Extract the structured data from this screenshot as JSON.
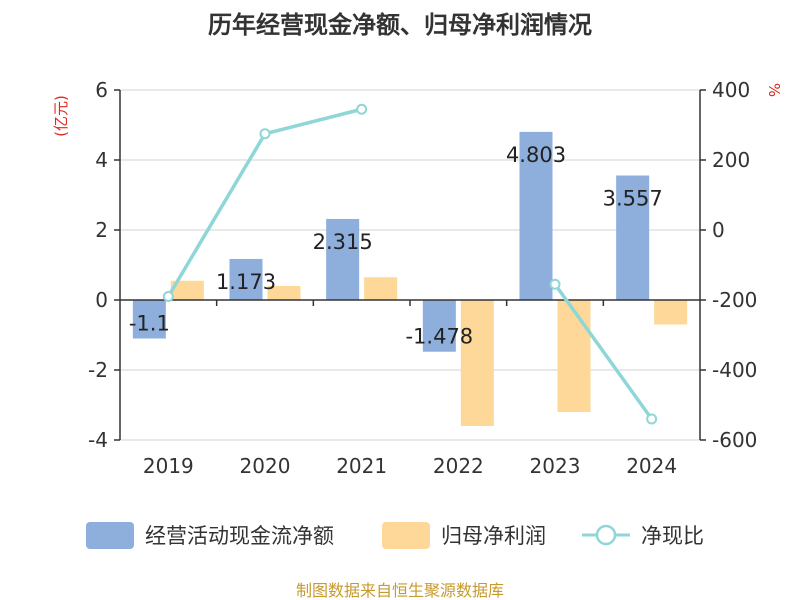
{
  "chart_data": {
    "type": "bar+line",
    "title": "历年经营现金净额、归母净利润情况",
    "categories": [
      "2019",
      "2020",
      "2021",
      "2022",
      "2023",
      "2024"
    ],
    "series": [
      {
        "name": "经营活动现金流净额",
        "type": "bar",
        "axis": "left",
        "color": "#8eaedc",
        "values": [
          -1.1,
          1.173,
          2.315,
          -1.478,
          4.803,
          3.557
        ],
        "labels": [
          "-1.1",
          "1.173",
          "2.315",
          "-1.478",
          "4.803",
          "3.557"
        ]
      },
      {
        "name": "归母净利润",
        "type": "bar",
        "axis": "left",
        "color": "#fdd898",
        "values": [
          0.55,
          0.4,
          0.65,
          -3.6,
          -3.2,
          -0.7
        ]
      },
      {
        "name": "净现比",
        "type": "line",
        "axis": "right",
        "color": "#8fd6d8",
        "values": [
          -190,
          275,
          345,
          null,
          -155,
          -540
        ]
      }
    ],
    "left_axis": {
      "unit": "(亿元)",
      "min": -4,
      "max": 6,
      "ticks": [
        -4,
        -2,
        0,
        2,
        4,
        6
      ]
    },
    "right_axis": {
      "unit": "%",
      "min": -600,
      "max": 400,
      "ticks": [
        -600,
        -400,
        -200,
        0,
        200,
        400
      ]
    },
    "legend_position": "bottom",
    "grid": true
  },
  "footer": {
    "source": "制图数据来自恒生聚源数据库"
  }
}
